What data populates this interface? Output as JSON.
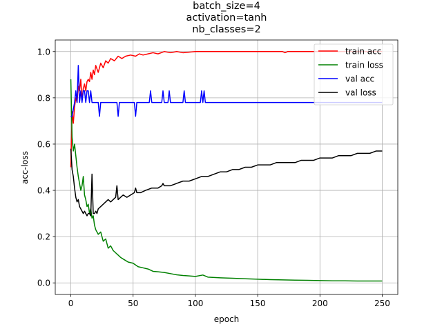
{
  "chart_data": {
    "type": "line",
    "title_lines": [
      "batch_size=4",
      "activation=tanh",
      "nb_classes=2"
    ],
    "xlabel": "epoch",
    "ylabel": "acc-loss",
    "xlim": [
      -12.5,
      262.5
    ],
    "ylim": [
      -0.05,
      1.05
    ],
    "xticks": [
      0,
      50,
      100,
      150,
      200,
      250
    ],
    "yticks": [
      0.0,
      0.2,
      0.4,
      0.6,
      0.8,
      1.0
    ],
    "xtick_labels": [
      "0",
      "50",
      "100",
      "150",
      "200",
      "250"
    ],
    "ytick_labels": [
      "0.0",
      "0.2",
      "0.4",
      "0.6",
      "0.8",
      "1.0"
    ],
    "grid": true,
    "legend_position": "top-right",
    "series": [
      {
        "name": "train acc",
        "color": "#ff0000",
        "points": [
          [
            0,
            0.5
          ],
          [
            1,
            0.74
          ],
          [
            2,
            0.69
          ],
          [
            3,
            0.76
          ],
          [
            4,
            0.8
          ],
          [
            5,
            0.78
          ],
          [
            6,
            0.85
          ],
          [
            7,
            0.83
          ],
          [
            8,
            0.88
          ],
          [
            9,
            0.79
          ],
          [
            10,
            0.84
          ],
          [
            11,
            0.86
          ],
          [
            12,
            0.83
          ],
          [
            13,
            0.87
          ],
          [
            14,
            0.88
          ],
          [
            15,
            0.87
          ],
          [
            16,
            0.91
          ],
          [
            17,
            0.88
          ],
          [
            18,
            0.92
          ],
          [
            19,
            0.9
          ],
          [
            20,
            0.94
          ],
          [
            22,
            0.91
          ],
          [
            24,
            0.95
          ],
          [
            26,
            0.93
          ],
          [
            28,
            0.96
          ],
          [
            30,
            0.95
          ],
          [
            32,
            0.97
          ],
          [
            35,
            0.96
          ],
          [
            38,
            0.98
          ],
          [
            41,
            0.97
          ],
          [
            44,
            0.98
          ],
          [
            48,
            0.985
          ],
          [
            52,
            0.98
          ],
          [
            55,
            0.99
          ],
          [
            58,
            0.985
          ],
          [
            62,
            0.99
          ],
          [
            66,
            0.995
          ],
          [
            70,
            0.99
          ],
          [
            75,
            1.0
          ],
          [
            80,
            0.995
          ],
          [
            85,
            1.0
          ],
          [
            90,
            0.995
          ],
          [
            100,
            1.0
          ],
          [
            110,
            1.0
          ],
          [
            125,
            1.0
          ],
          [
            140,
            1.0
          ],
          [
            170,
            1.0
          ],
          [
            172,
            0.995
          ],
          [
            174,
            1.0
          ],
          [
            250,
            1.0
          ]
        ]
      },
      {
        "name": "train loss",
        "color": "#008000",
        "points": [
          [
            0,
            0.88
          ],
          [
            1,
            0.63
          ],
          [
            2,
            0.57
          ],
          [
            3,
            0.6
          ],
          [
            4,
            0.55
          ],
          [
            5,
            0.5
          ],
          [
            6,
            0.46
          ],
          [
            7,
            0.43
          ],
          [
            8,
            0.4
          ],
          [
            9,
            0.42
          ],
          [
            10,
            0.46
          ],
          [
            11,
            0.38
          ],
          [
            12,
            0.36
          ],
          [
            13,
            0.33
          ],
          [
            14,
            0.34
          ],
          [
            15,
            0.3
          ],
          [
            16,
            0.32
          ],
          [
            17,
            0.28
          ],
          [
            18,
            0.29
          ],
          [
            19,
            0.25
          ],
          [
            20,
            0.23
          ],
          [
            22,
            0.21
          ],
          [
            24,
            0.22
          ],
          [
            26,
            0.18
          ],
          [
            28,
            0.19
          ],
          [
            30,
            0.15
          ],
          [
            32,
            0.16
          ],
          [
            34,
            0.14
          ],
          [
            36,
            0.13
          ],
          [
            38,
            0.12
          ],
          [
            40,
            0.11
          ],
          [
            43,
            0.1
          ],
          [
            46,
            0.09
          ],
          [
            50,
            0.085
          ],
          [
            54,
            0.07
          ],
          [
            58,
            0.065
          ],
          [
            62,
            0.06
          ],
          [
            66,
            0.05
          ],
          [
            70,
            0.048
          ],
          [
            75,
            0.045
          ],
          [
            80,
            0.04
          ],
          [
            85,
            0.035
          ],
          [
            90,
            0.032
          ],
          [
            95,
            0.03
          ],
          [
            100,
            0.028
          ],
          [
            106,
            0.034
          ],
          [
            110,
            0.025
          ],
          [
            120,
            0.022
          ],
          [
            130,
            0.02
          ],
          [
            140,
            0.018
          ],
          [
            150,
            0.016
          ],
          [
            160,
            0.014
          ],
          [
            170,
            0.013
          ],
          [
            180,
            0.012
          ],
          [
            190,
            0.011
          ],
          [
            200,
            0.01
          ],
          [
            210,
            0.009
          ],
          [
            220,
            0.009
          ],
          [
            230,
            0.008
          ],
          [
            240,
            0.008
          ],
          [
            250,
            0.008
          ]
        ]
      },
      {
        "name": "val acc",
        "color": "#0000ff",
        "points": [
          [
            0,
            0.72
          ],
          [
            1,
            0.72
          ],
          [
            2,
            0.75
          ],
          [
            3,
            0.78
          ],
          [
            4,
            0.83
          ],
          [
            5,
            0.78
          ],
          [
            6,
            0.94
          ],
          [
            7,
            0.78
          ],
          [
            8,
            0.83
          ],
          [
            9,
            0.78
          ],
          [
            10,
            0.83
          ],
          [
            11,
            0.83
          ],
          [
            12,
            0.78
          ],
          [
            13,
            0.83
          ],
          [
            14,
            0.83
          ],
          [
            15,
            0.78
          ],
          [
            16,
            0.83
          ],
          [
            17,
            0.78
          ],
          [
            18,
            0.78
          ],
          [
            20,
            0.78
          ],
          [
            22,
            0.78
          ],
          [
            23,
            0.72
          ],
          [
            24,
            0.78
          ],
          [
            30,
            0.78
          ],
          [
            37,
            0.78
          ],
          [
            38,
            0.72
          ],
          [
            39,
            0.78
          ],
          [
            51,
            0.78
          ],
          [
            52,
            0.72
          ],
          [
            53,
            0.78
          ],
          [
            63,
            0.78
          ],
          [
            64,
            0.83
          ],
          [
            65,
            0.78
          ],
          [
            73,
            0.78
          ],
          [
            74,
            0.83
          ],
          [
            75,
            0.78
          ],
          [
            78,
            0.78
          ],
          [
            79,
            0.83
          ],
          [
            80,
            0.78
          ],
          [
            90,
            0.78
          ],
          [
            91,
            0.83
          ],
          [
            92,
            0.78
          ],
          [
            104,
            0.78
          ],
          [
            105,
            0.83
          ],
          [
            106,
            0.78
          ],
          [
            107,
            0.83
          ],
          [
            108,
            0.78
          ],
          [
            250,
            0.78
          ]
        ]
      },
      {
        "name": "val loss",
        "color": "#000000",
        "points": [
          [
            0,
            0.58
          ],
          [
            1,
            0.49
          ],
          [
            2,
            0.46
          ],
          [
            3,
            0.41
          ],
          [
            4,
            0.37
          ],
          [
            5,
            0.35
          ],
          [
            6,
            0.36
          ],
          [
            7,
            0.33
          ],
          [
            8,
            0.32
          ],
          [
            9,
            0.31
          ],
          [
            10,
            0.3
          ],
          [
            11,
            0.31
          ],
          [
            12,
            0.3
          ],
          [
            13,
            0.29
          ],
          [
            14,
            0.3
          ],
          [
            15,
            0.3
          ],
          [
            16,
            0.29
          ],
          [
            17,
            0.47
          ],
          [
            18,
            0.3
          ],
          [
            19,
            0.3
          ],
          [
            20,
            0.31
          ],
          [
            21,
            0.3
          ],
          [
            22,
            0.32
          ],
          [
            24,
            0.33
          ],
          [
            26,
            0.34
          ],
          [
            28,
            0.35
          ],
          [
            30,
            0.36
          ],
          [
            32,
            0.35
          ],
          [
            34,
            0.36
          ],
          [
            36,
            0.37
          ],
          [
            37,
            0.42
          ],
          [
            38,
            0.36
          ],
          [
            40,
            0.37
          ],
          [
            42,
            0.38
          ],
          [
            45,
            0.37
          ],
          [
            48,
            0.38
          ],
          [
            51,
            0.39
          ],
          [
            52,
            0.41
          ],
          [
            53,
            0.39
          ],
          [
            56,
            0.39
          ],
          [
            60,
            0.4
          ],
          [
            65,
            0.41
          ],
          [
            70,
            0.41
          ],
          [
            73,
            0.42
          ],
          [
            74,
            0.43
          ],
          [
            75,
            0.42
          ],
          [
            80,
            0.42
          ],
          [
            85,
            0.43
          ],
          [
            90,
            0.44
          ],
          [
            95,
            0.44
          ],
          [
            100,
            0.45
          ],
          [
            105,
            0.46
          ],
          [
            110,
            0.46
          ],
          [
            115,
            0.47
          ],
          [
            120,
            0.48
          ],
          [
            125,
            0.48
          ],
          [
            130,
            0.49
          ],
          [
            135,
            0.49
          ],
          [
            140,
            0.5
          ],
          [
            145,
            0.5
          ],
          [
            150,
            0.51
          ],
          [
            155,
            0.51
          ],
          [
            160,
            0.51
          ],
          [
            165,
            0.52
          ],
          [
            170,
            0.52
          ],
          [
            175,
            0.52
          ],
          [
            180,
            0.52
          ],
          [
            185,
            0.53
          ],
          [
            190,
            0.53
          ],
          [
            195,
            0.53
          ],
          [
            200,
            0.54
          ],
          [
            205,
            0.54
          ],
          [
            210,
            0.54
          ],
          [
            215,
            0.55
          ],
          [
            220,
            0.55
          ],
          [
            225,
            0.55
          ],
          [
            230,
            0.56
          ],
          [
            235,
            0.56
          ],
          [
            240,
            0.56
          ],
          [
            245,
            0.57
          ],
          [
            250,
            0.57
          ]
        ]
      }
    ]
  }
}
